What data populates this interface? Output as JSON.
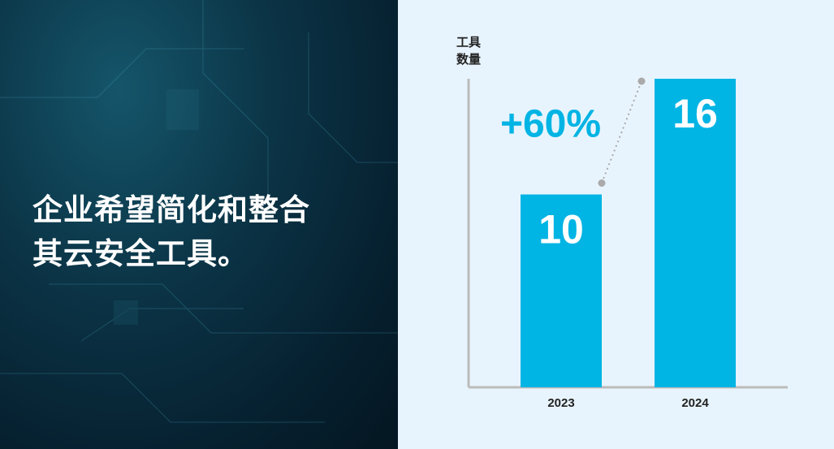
{
  "headline": [
    "企业希望简化和整合",
    "其云安全工具。"
  ],
  "chart_data": {
    "type": "bar",
    "y_label": [
      "工具",
      "数量"
    ],
    "annotation": "+60%",
    "categories": [
      "2023",
      "2024"
    ],
    "values": [
      10,
      16
    ],
    "color": "#00b4e4",
    "ylim": [
      0,
      16
    ]
  }
}
